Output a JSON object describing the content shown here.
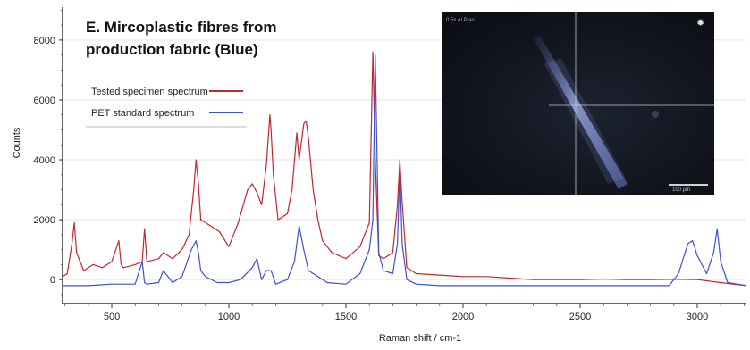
{
  "chart_data": {
    "type": "line",
    "title_lines": [
      "E. Mircoplastic fibres from",
      "production fabric (Blue)"
    ],
    "xlabel": "Raman shift / cm-1",
    "ylabel": "Counts",
    "xlim": [
      290,
      3210
    ],
    "ylim": [
      -800,
      9100
    ],
    "x_ticks": [
      500,
      1000,
      1500,
      2000,
      2500,
      3000
    ],
    "y_ticks": [
      0,
      2000,
      4000,
      6000,
      8000
    ],
    "x_tick_labels": [
      "500",
      "1000",
      "1500",
      "2000",
      "2500",
      "3000"
    ],
    "y_tick_labels": [
      "0",
      "2000",
      "4000",
      "6000",
      "8000"
    ],
    "legend_position": "top-left",
    "series": [
      {
        "name": "Tested specimen spectrum",
        "color": "#c1272d",
        "x": [
          290,
          310,
          330,
          340,
          350,
          380,
          420,
          460,
          500,
          530,
          540,
          550,
          600,
          630,
          640,
          650,
          700,
          720,
          760,
          800,
          830,
          850,
          860,
          870,
          880,
          920,
          960,
          1000,
          1040,
          1080,
          1100,
          1120,
          1140,
          1160,
          1175,
          1180,
          1190,
          1210,
          1250,
          1270,
          1290,
          1300,
          1320,
          1330,
          1340,
          1360,
          1380,
          1400,
          1440,
          1500,
          1560,
          1600,
          1615,
          1625,
          1640,
          1660,
          1700,
          1720,
          1730,
          1740,
          1760,
          1800,
          1900,
          2000,
          2100,
          2200,
          2300,
          2400,
          2500,
          2600,
          2700,
          2800,
          2900,
          3000,
          3100,
          3210
        ],
        "y": [
          100,
          200,
          1200,
          1900,
          900,
          300,
          500,
          400,
          600,
          1300,
          500,
          400,
          500,
          600,
          1700,
          600,
          700,
          900,
          700,
          1000,
          1500,
          3000,
          4000,
          3200,
          2000,
          1800,
          1600,
          1100,
          1900,
          3000,
          3200,
          2900,
          2500,
          3800,
          5500,
          5000,
          3500,
          2000,
          2200,
          3000,
          4900,
          4000,
          5200,
          5300,
          4700,
          3000,
          2000,
          1300,
          900,
          700,
          1100,
          1900,
          7600,
          4000,
          800,
          700,
          900,
          2500,
          4000,
          2600,
          400,
          200,
          150,
          100,
          100,
          50,
          0,
          0,
          0,
          20,
          0,
          0,
          10,
          0,
          -100,
          -200
        ]
      },
      {
        "name": "PET standard spectrum",
        "color": "#3f51c7",
        "x": [
          290,
          400,
          500,
          600,
          630,
          640,
          650,
          700,
          720,
          760,
          800,
          840,
          860,
          870,
          880,
          900,
          950,
          1000,
          1050,
          1100,
          1120,
          1140,
          1160,
          1180,
          1200,
          1250,
          1280,
          1300,
          1320,
          1340,
          1380,
          1420,
          1500,
          1560,
          1600,
          1615,
          1625,
          1640,
          1660,
          1700,
          1720,
          1730,
          1740,
          1760,
          1800,
          1900,
          2000,
          2200,
          2400,
          2600,
          2800,
          2880,
          2920,
          2960,
          2980,
          3000,
          3040,
          3070,
          3085,
          3100,
          3130,
          3210
        ],
        "y": [
          -200,
          -200,
          -150,
          -150,
          600,
          -100,
          -150,
          -100,
          300,
          -100,
          100,
          1000,
          1300,
          900,
          300,
          100,
          -100,
          -100,
          0,
          400,
          700,
          0,
          300,
          300,
          -150,
          0,
          600,
          1800,
          1000,
          300,
          100,
          -100,
          -150,
          200,
          1000,
          2000,
          7500,
          900,
          300,
          200,
          1200,
          3700,
          1200,
          0,
          -150,
          -200,
          -200,
          -200,
          -200,
          -200,
          -200,
          -200,
          200,
          1200,
          1300,
          800,
          200,
          900,
          1700,
          600,
          -100,
          -200
        ]
      }
    ]
  },
  "inset": {
    "overlay_text": "0.5x Al Plan",
    "scale_bar_label": "100 µm"
  }
}
